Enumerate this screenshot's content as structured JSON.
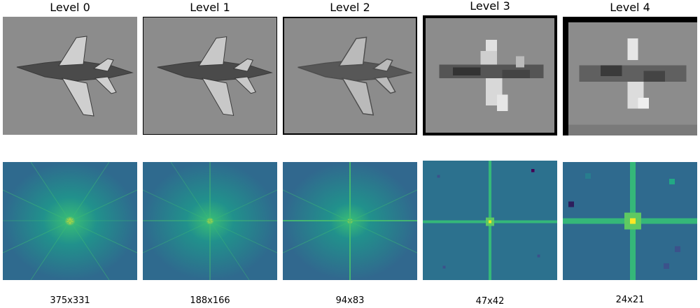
{
  "levels": [
    {
      "title": "Level 0",
      "size": "375x331"
    },
    {
      "title": "Level 1",
      "size": "188x166"
    },
    {
      "title": "Level 2",
      "size": "94x83"
    },
    {
      "title": "Level 3",
      "size": "47x42"
    },
    {
      "title": "Level 4",
      "size": "24x21"
    }
  ],
  "colors": {
    "image_bg": "#8c8c8c",
    "spectrum_bg": "#2f6a8e",
    "spectrum_line": "#35b779",
    "spectrum_peak": "#fde725"
  }
}
